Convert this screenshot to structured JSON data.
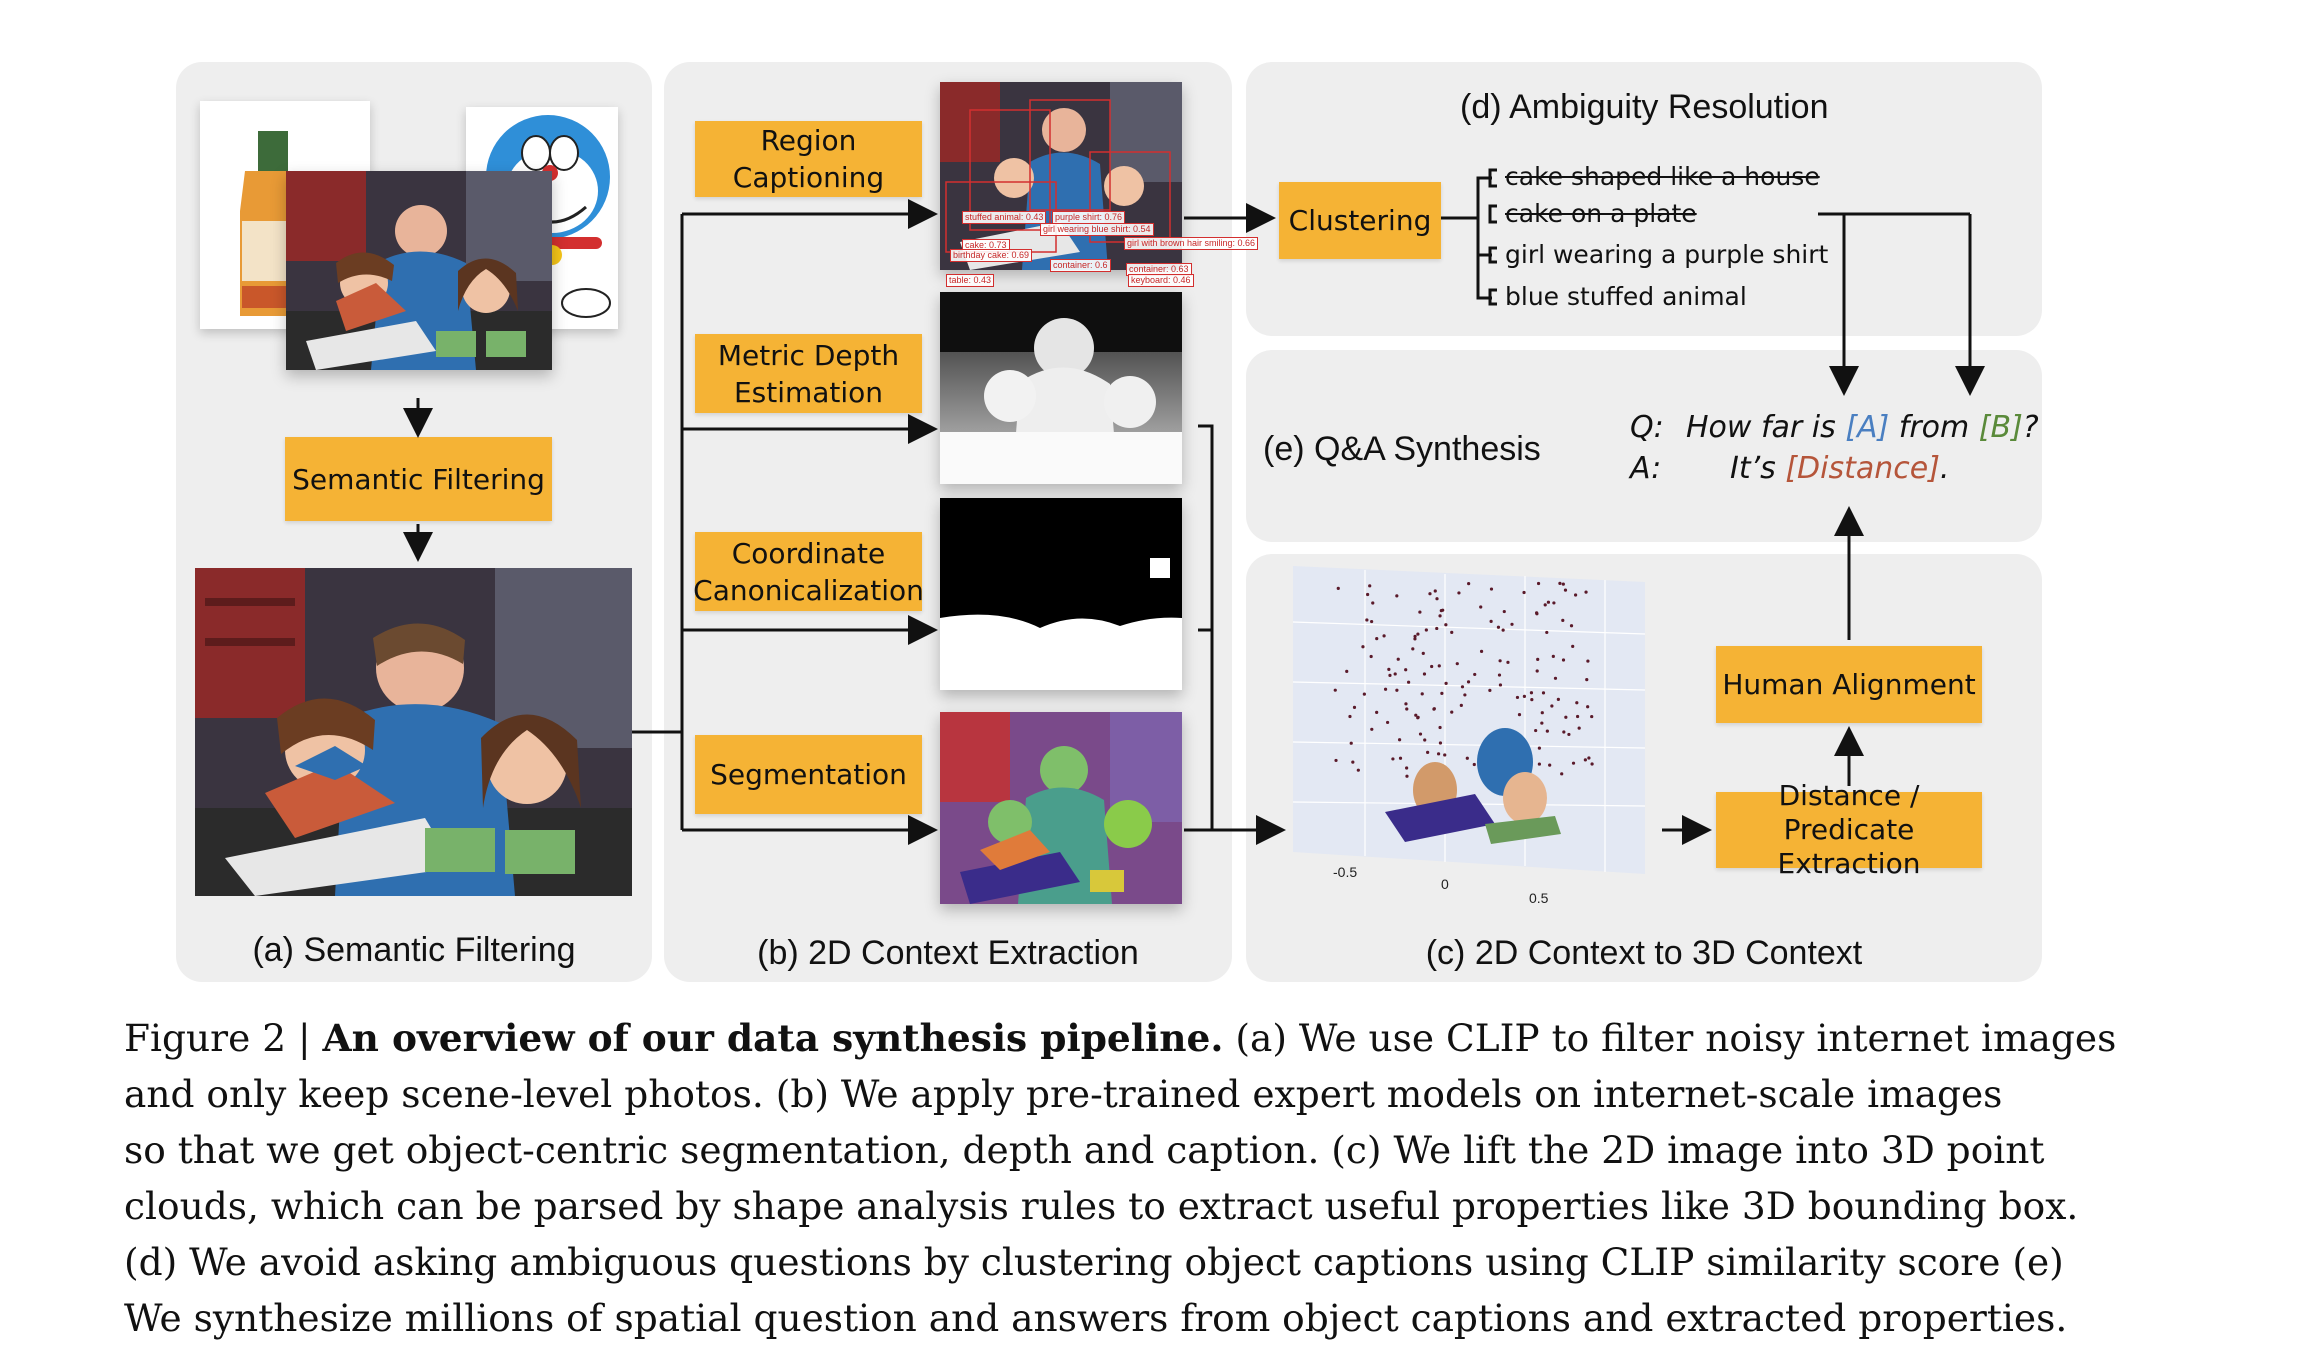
{
  "panels": {
    "a": {
      "title": "(a) Semantic Filtering",
      "filter_box": "Semantic Filtering"
    },
    "b": {
      "title": "(b) 2D Context Extraction",
      "boxes": [
        [
          "Region",
          "Captioning"
        ],
        [
          "Metric Depth",
          "Estimation"
        ],
        [
          "Coordinate",
          "Canonicalization"
        ],
        [
          "Segmentation"
        ]
      ],
      "detections": [
        "stuffed animal: 0.43",
        "purple shirt: 0.76",
        "girl wearing blue shirt: 0.54",
        "girl with brown hair smiling: 0.66",
        "cake: 0.73",
        "birthday cake: 0.69",
        "container: 0.6",
        "container: 0.63",
        "keyboard: 0.46",
        "table: 0.43"
      ]
    },
    "c": {
      "title": "(c) 2D Context to 3D Context",
      "extract_box": [
        "Distance / Predicate",
        "Extraction"
      ],
      "align_box": "Human Alignment",
      "ticks": [
        "-0.5",
        "0",
        "0.5"
      ]
    },
    "d": {
      "title": "(d) Ambiguity Resolution",
      "cluster_box": "Clustering",
      "captions": [
        {
          "text": "cake shaped like a house",
          "struck": true
        },
        {
          "text": "cake on a plate",
          "struck": true
        },
        {
          "text": "girl wearing a purple shirt",
          "struck": false
        },
        {
          "text": "blue stuffed animal",
          "struck": false
        }
      ]
    },
    "e": {
      "title": "(e) Q&A Synthesis",
      "q_label": "Q:",
      "q_pre": "How far is ",
      "q_a": "[A]",
      "q_mid": " from ",
      "q_b": "[B]",
      "q_end": "?",
      "a_label": "A:",
      "a_pre": "It’s ",
      "a_d": "[Distance]",
      "a_end": "."
    }
  },
  "caption": {
    "prefix": "Figure 2 | ",
    "bold": "An overview of our data synthesis pipeline.",
    "line1_rest": " (a) We use CLIP to filter noisy internet images",
    "lines": [
      "and only keep scene-level photos.  (b) We apply pre-trained expert models on internet-scale images",
      "so that we get object-centric segmentation, depth and caption.  (c) We lift the 2D image into 3D point",
      "clouds, which can be parsed by shape analysis rules to extract useful properties like 3D bounding box.",
      "(d) We avoid asking ambiguous questions by clustering object captions using CLIP similarity score (e)",
      "We synthesize millions of spatial question and answers from object captions and extracted properties."
    ]
  },
  "colors": {
    "panel_bg": "#eeeeee",
    "box": "#f5b335",
    "arrow": "#111111",
    "a_color": "#4a7fc1",
    "b_color": "#5a8a3a",
    "dist_color": "#b5553a"
  }
}
